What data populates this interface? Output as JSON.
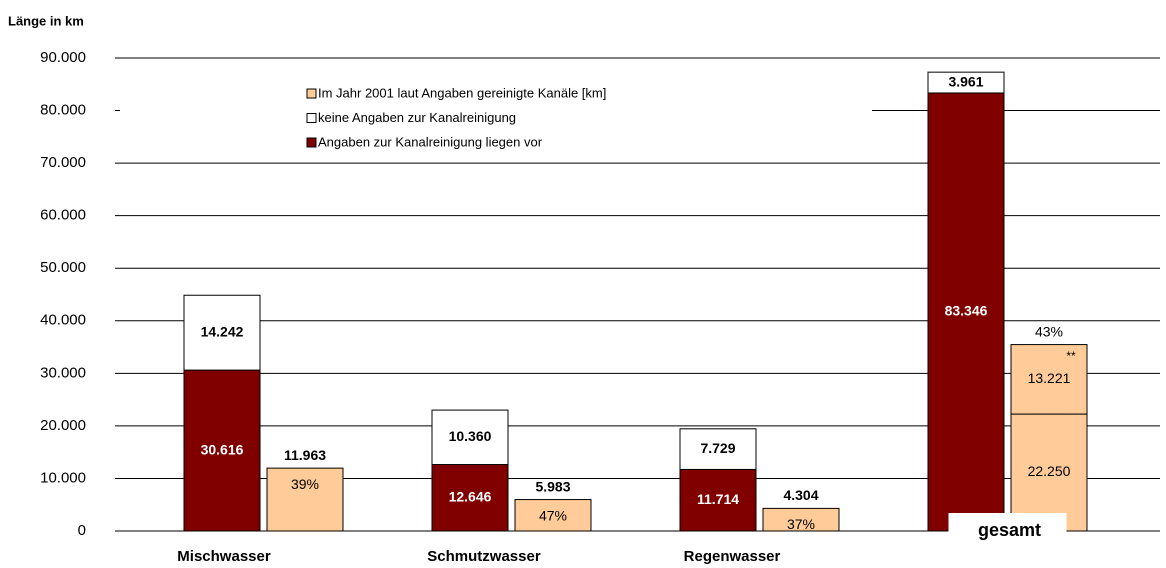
{
  "chart_data": {
    "type": "bar",
    "title": "Länge in km",
    "categories": [
      "Mischwasser",
      "Schmutzwasser",
      "Regenwasser",
      "gesamt"
    ],
    "ylim": [
      0,
      90000
    ],
    "yticks": [
      0,
      {
        "value": 10000,
        "label": "10.000"
      },
      {
        "value": 20000,
        "label": "20.000"
      },
      {
        "value": 30000,
        "label": "30.000"
      },
      {
        "value": 40000,
        "label": "40.000"
      },
      {
        "value": 50000,
        "label": "50.000"
      },
      {
        "value": 60000,
        "label": "60.000"
      },
      {
        "value": 70000,
        "label": "70.000"
      },
      {
        "value": 80000,
        "label": "80.000"
      },
      {
        "value": 90000,
        "label": "90.000"
      }
    ],
    "grid": true,
    "legend_order": [
      2,
      1,
      0
    ],
    "series": [
      {
        "name": "Angaben zur Kanalreinigung liegen vor",
        "color": "#800000",
        "stack": 0,
        "values": [
          30616,
          12646,
          11714,
          83346
        ],
        "value_labels": [
          "30.616",
          "12.646",
          "11.714",
          "83.346"
        ]
      },
      {
        "name": "keine Angaben zur Kanalreinigung",
        "color": "#ffffff",
        "stack": 0,
        "values": [
          14242,
          10360,
          7729,
          3961
        ],
        "value_labels": [
          "14.242",
          "10.360",
          "7.729",
          "3.961"
        ]
      },
      {
        "name": "Im Jahr 2001 laut Angaben gereinigte Kanäle [km]",
        "color": "#ffcc99",
        "stack": 1,
        "values": [
          11963,
          5983,
          4304,
          22250
        ],
        "value_labels": [
          "11.963",
          "5.983",
          "4.304",
          "22.250"
        ]
      },
      {
        "color": "#ffcc99",
        "stack": 1,
        "values": [
          null,
          null,
          null,
          13221
        ],
        "value_labels": [
          null,
          null,
          null,
          "13.221"
        ]
      }
    ],
    "percent_labels": [
      "39%",
      "47%",
      "37%",
      "43%"
    ],
    "annotation": "**"
  }
}
